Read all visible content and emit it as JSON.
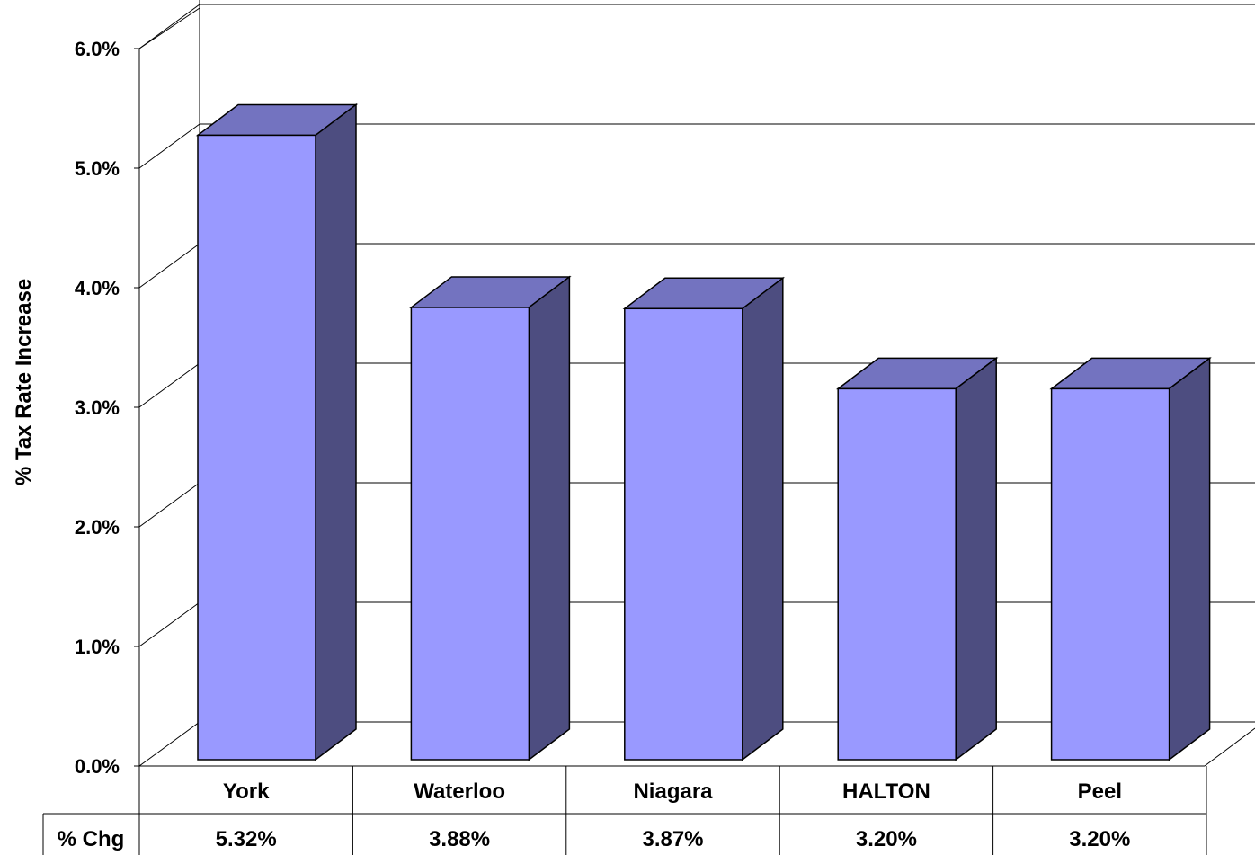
{
  "chart_data": {
    "type": "bar",
    "style": "3d-column",
    "title": "",
    "xlabel": "",
    "ylabel": "% Tax Rate Increase",
    "ylim": [
      0,
      6
    ],
    "yticks": [
      "0.0%",
      "1.0%",
      "2.0%",
      "3.0%",
      "4.0%",
      "5.0%",
      "6.0%"
    ],
    "grid": true,
    "categories": [
      "York",
      "Waterloo",
      "Niagara",
      "HALTON",
      "Peel"
    ],
    "values": [
      5.32,
      3.88,
      3.87,
      3.2,
      3.2
    ],
    "data_table": {
      "row_label": "% Chg",
      "cells": [
        "5.32%",
        "3.88%",
        "3.87%",
        "3.20%",
        "3.20%"
      ]
    },
    "colors": {
      "bar_front": "#9999FF",
      "bar_top": "#7373C0",
      "bar_side": "#4D4D80",
      "gridline": "#000000"
    }
  }
}
